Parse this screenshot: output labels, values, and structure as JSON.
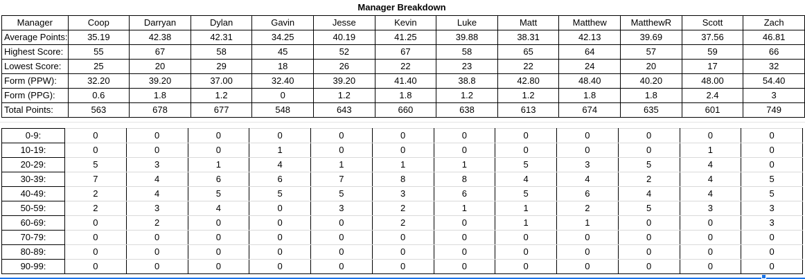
{
  "title": "Manager Breakdown",
  "managers": [
    "Coop",
    "Darryan",
    "Dylan",
    "Gavin",
    "Jesse",
    "Kevin",
    "Luke",
    "Matt",
    "Matthew",
    "MatthewR",
    "Scott",
    "Zach"
  ],
  "stats_table": {
    "header_label": "Manager",
    "rows": [
      {
        "label": "Average Points:",
        "values": [
          "35.19",
          "42.38",
          "42.31",
          "34.25",
          "40.19",
          "41.25",
          "39.88",
          "38.31",
          "42.13",
          "39.69",
          "37.56",
          "46.81"
        ]
      },
      {
        "label": "Highest Score:",
        "values": [
          "55",
          "67",
          "58",
          "45",
          "52",
          "67",
          "58",
          "65",
          "64",
          "57",
          "59",
          "66"
        ]
      },
      {
        "label": "Lowest Score:",
        "values": [
          "25",
          "20",
          "29",
          "18",
          "26",
          "22",
          "23",
          "22",
          "24",
          "20",
          "17",
          "32"
        ]
      },
      {
        "label": "Form (PPW):",
        "values": [
          "32.20",
          "39.20",
          "37.00",
          "32.40",
          "39.20",
          "41.40",
          "38.8",
          "42.80",
          "48.40",
          "40.20",
          "48.00",
          "54.40"
        ]
      },
      {
        "label": "Form (PPG):",
        "values": [
          "0.6",
          "1.8",
          "1.2",
          "0",
          "1.2",
          "1.8",
          "1.2",
          "1.2",
          "1.8",
          "1.8",
          "2.4",
          "3"
        ]
      },
      {
        "label": "Total Points:",
        "values": [
          "563",
          "678",
          "677",
          "548",
          "643",
          "660",
          "638",
          "613",
          "674",
          "635",
          "601",
          "749"
        ]
      }
    ]
  },
  "score_distribution_table": {
    "rows": [
      {
        "label": "0-9:",
        "values": [
          "0",
          "0",
          "0",
          "0",
          "0",
          "0",
          "0",
          "0",
          "0",
          "0",
          "0",
          "0"
        ]
      },
      {
        "label": "10-19:",
        "values": [
          "0",
          "0",
          "0",
          "1",
          "0",
          "0",
          "0",
          "0",
          "0",
          "0",
          "1",
          "0"
        ]
      },
      {
        "label": "20-29:",
        "values": [
          "5",
          "3",
          "1",
          "4",
          "1",
          "1",
          "1",
          "5",
          "3",
          "5",
          "4",
          "0"
        ]
      },
      {
        "label": "30-39:",
        "values": [
          "7",
          "4",
          "6",
          "6",
          "7",
          "8",
          "8",
          "4",
          "4",
          "2",
          "4",
          "5"
        ]
      },
      {
        "label": "40-49:",
        "values": [
          "2",
          "4",
          "5",
          "5",
          "5",
          "3",
          "6",
          "5",
          "6",
          "4",
          "4",
          "5"
        ]
      },
      {
        "label": "50-59:",
        "values": [
          "2",
          "3",
          "4",
          "0",
          "3",
          "2",
          "1",
          "1",
          "2",
          "5",
          "3",
          "3"
        ]
      },
      {
        "label": "60-69:",
        "values": [
          "0",
          "2",
          "0",
          "0",
          "0",
          "2",
          "0",
          "1",
          "1",
          "0",
          "0",
          "3"
        ]
      },
      {
        "label": "70-79:",
        "values": [
          "0",
          "0",
          "0",
          "0",
          "0",
          "0",
          "0",
          "0",
          "0",
          "0",
          "0",
          "0"
        ]
      },
      {
        "label": "80-89:",
        "values": [
          "0",
          "0",
          "0",
          "0",
          "0",
          "0",
          "0",
          "0",
          "0",
          "0",
          "0",
          "0"
        ]
      },
      {
        "label": "90-99:",
        "values": [
          "0",
          "0",
          "0",
          "0",
          "0",
          "0",
          "0",
          "0",
          "0",
          "0",
          "0",
          "0"
        ]
      }
    ]
  },
  "colors": {
    "border": "#000000",
    "gridline": "#d9d9d9",
    "background": "#ffffff",
    "text": "#000000",
    "selection_blue": "#1a73e8"
  }
}
